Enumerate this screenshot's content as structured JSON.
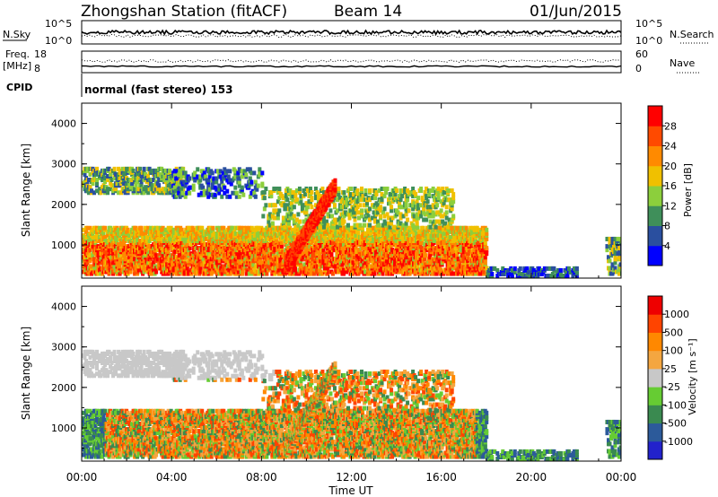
{
  "header": {
    "station": "Zhongshan Station (fitACF)",
    "beam": "Beam 14",
    "date": "01/Jun/2015"
  },
  "aux_panels": {
    "nsky_label": "N.Sky",
    "nsky_ticks": [
      "10^5",
      "10^0"
    ],
    "nsearch_label": "N.Search",
    "nsearch_ticks": [
      "10^5",
      "10^0"
    ],
    "freq_label": "Freq.",
    "freq_unit": "[MHz]",
    "freq_ticks": [
      "18",
      "8"
    ],
    "nave_label": "Nave",
    "nave_ticks": [
      "60",
      "0"
    ],
    "cpid_label": "CPID",
    "cpid_text": "normal (fast stereo) 153"
  },
  "colors": {
    "power": [
      "#0000ff",
      "#2a4f9f",
      "#3f8f5a",
      "#8ccf3c",
      "#f0c000",
      "#ff8a00",
      "#ff4a00",
      "#ff0000"
    ],
    "velocity": [
      "#2222cc",
      "#2c5a9a",
      "#3a8a50",
      "#66cc33",
      "#c8c8c8",
      "#f4a640",
      "#ff8800",
      "#ff4400",
      "#ee0000"
    ]
  },
  "chart_data": [
    {
      "type": "heatmap",
      "panel": "power",
      "ylabel": "Slant Range [km]",
      "y_ticks": [
        "4000",
        "3000",
        "2000",
        "1000"
      ],
      "x_ticks": [
        "00:00",
        "04:00",
        "08:00",
        "12:00",
        "16:00",
        "20:00",
        "00:00"
      ],
      "xlim": [
        0,
        24
      ],
      "ylim": [
        180,
        4500
      ],
      "colorbar": {
        "label": "Power [dB]",
        "ticks": [
          "28",
          "24",
          "20",
          "16",
          "12",
          "8",
          "4"
        ]
      }
    },
    {
      "type": "heatmap",
      "panel": "velocity",
      "ylabel": "Slant Range [km]",
      "y_ticks": [
        "4000",
        "3000",
        "2000",
        "1000"
      ],
      "x_ticks": [
        "00:00",
        "04:00",
        "08:00",
        "12:00",
        "16:00",
        "20:00",
        "00:00"
      ],
      "xlabel": "Time UT",
      "xlim": [
        0,
        24
      ],
      "ylim": [
        180,
        4500
      ],
      "colorbar": {
        "label": "Velocity [m s⁻¹]",
        "ticks": [
          "1000",
          "500",
          "100",
          "25",
          "-25",
          "-100",
          "-500",
          "-1000"
        ]
      }
    }
  ]
}
